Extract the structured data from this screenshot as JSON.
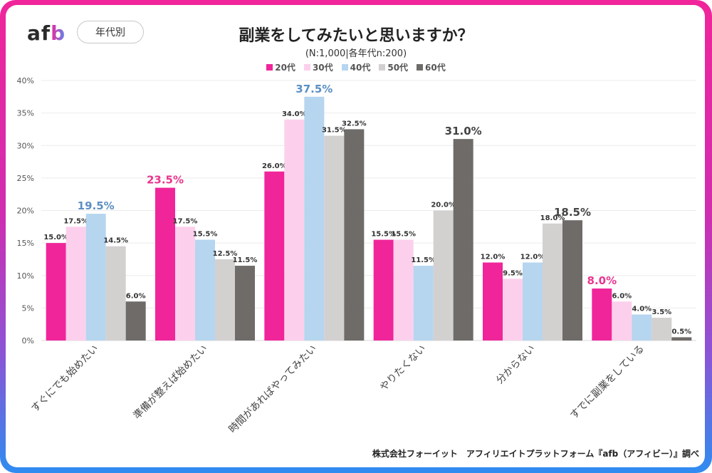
{
  "header": {
    "logo_text_af": "af",
    "logo_text_b": "b",
    "badge": "年代別"
  },
  "colors": {
    "20代": "#f0259a",
    "30代": "#fcd0ec",
    "40代": "#b6d5ef",
    "50代": "#d3d0d0",
    "60代": "#6e6b69",
    "highlight_pink": "#e8368f",
    "highlight_blue": "#5b8fc4",
    "highlight_dark": "#444444"
  },
  "chart_data": {
    "type": "bar",
    "title": "副業をしてみたいと思いますか？",
    "subtitle": "(N:1,000|各年代n:200)",
    "xlabel": "",
    "ylabel": "",
    "ylim": [
      0,
      40
    ],
    "yticks": [
      "0%",
      "5%",
      "10%",
      "15%",
      "20%",
      "25%",
      "30%",
      "35%",
      "40%"
    ],
    "grid": true,
    "legend_position": "top",
    "categories": [
      "すぐにでも始めたい",
      "準備が整えば始めたい",
      "時間があればやってみたい",
      "やりたくない",
      "分からない",
      "すでに副業をしている"
    ],
    "series": [
      {
        "name": "20代",
        "values": [
          15.0,
          23.5,
          26.0,
          15.5,
          12.0,
          8.0
        ],
        "labels": [
          "15.0%",
          "23.5%",
          "26.0%",
          "15.5%",
          "12.0%",
          "8.0%"
        ]
      },
      {
        "name": "30代",
        "values": [
          17.5,
          17.5,
          34.0,
          15.5,
          9.5,
          6.0
        ],
        "labels": [
          "17.5%",
          "17.5%",
          "34.0%",
          "15.5%",
          "9.5%",
          "6.0%"
        ]
      },
      {
        "name": "40代",
        "values": [
          19.5,
          15.5,
          37.5,
          11.5,
          12.0,
          4.0
        ],
        "labels": [
          "19.5%",
          "15.5%",
          "37.5%",
          "11.5%",
          "12.0%",
          "4.0%"
        ]
      },
      {
        "name": "50代",
        "values": [
          14.5,
          12.5,
          31.5,
          20.0,
          18.0,
          3.5
        ],
        "labels": [
          "14.5%",
          "12.5%",
          "31.5%",
          "20.0%",
          "18.0%",
          "3.5%"
        ]
      },
      {
        "name": "60代",
        "values": [
          6.0,
          11.5,
          32.5,
          31.0,
          18.5,
          0.5
        ],
        "labels": [
          "6.0%",
          "11.5%",
          "32.5%",
          "31.0%",
          "18.5%",
          "0.5%"
        ]
      }
    ],
    "highlights": [
      {
        "category": 0,
        "series": 2,
        "style": "blue"
      },
      {
        "category": 1,
        "series": 0,
        "style": "pink"
      },
      {
        "category": 2,
        "series": 2,
        "style": "blue"
      },
      {
        "category": 3,
        "series": 4,
        "style": "dark"
      },
      {
        "category": 4,
        "series": 4,
        "style": "dark"
      },
      {
        "category": 5,
        "series": 0,
        "style": "pink"
      }
    ]
  },
  "footer": {
    "credit": "株式会社フォーイット　アフィリエイトプラットフォーム『afb（アフィビー）』調べ"
  }
}
